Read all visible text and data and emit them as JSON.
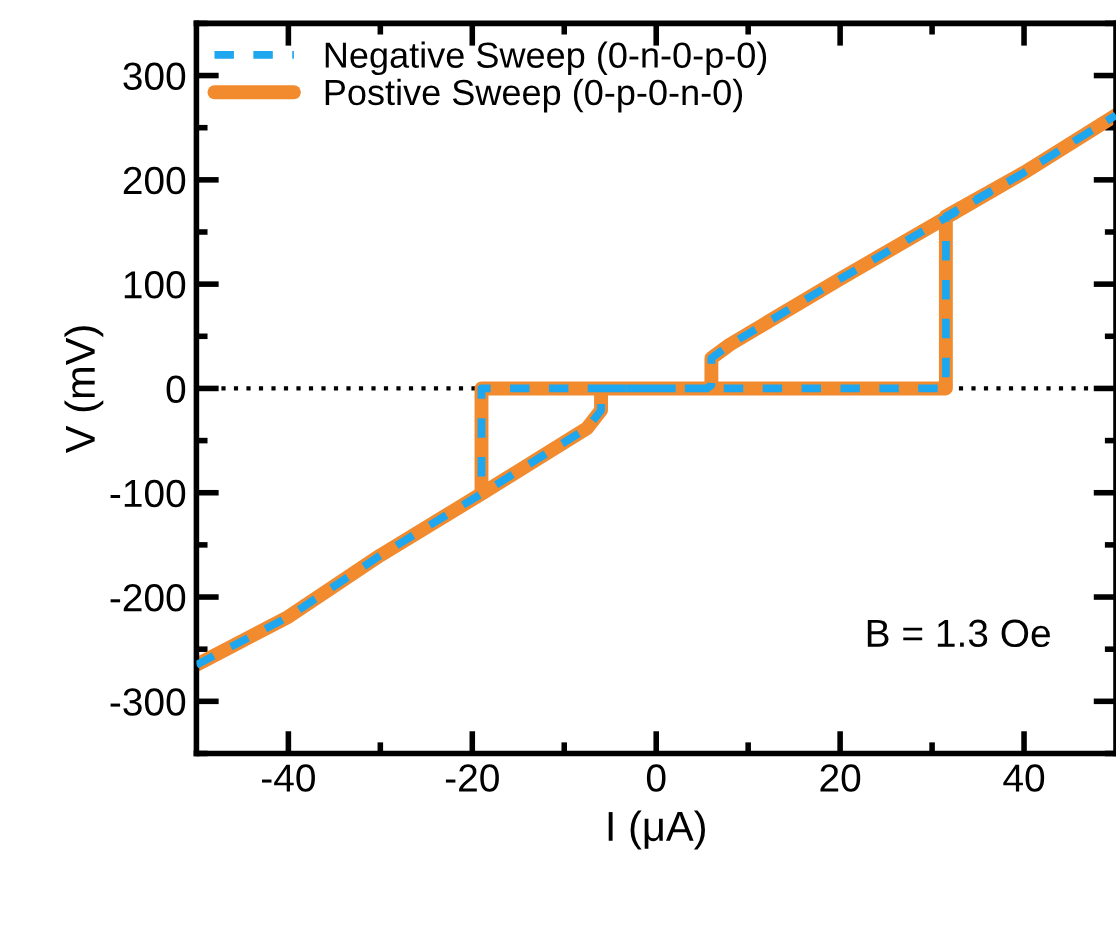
{
  "chart_data": {
    "type": "line",
    "xlabel": "I (μA)",
    "ylabel": "V (mV)",
    "xlim": [
      -50,
      50
    ],
    "ylim": [
      -350,
      350
    ],
    "xticks": [
      -40,
      {
        "value": -30,
        "label": null
      },
      -20,
      {
        "value": -10,
        "label": null
      },
      0,
      {
        "value": 10,
        "label": null
      },
      20,
      {
        "value": 30,
        "label": null
      },
      40
    ],
    "yticks": [
      {
        "value": -350,
        "label": null
      },
      -300,
      {
        "value": -250,
        "label": null
      },
      -200,
      {
        "value": -150,
        "label": null
      },
      -100,
      {
        "value": -50,
        "label": null
      },
      0,
      {
        "value": 50,
        "label": null
      },
      100,
      {
        "value": 150,
        "label": null
      },
      200,
      {
        "value": 250,
        "label": null
      },
      300,
      {
        "value": 350,
        "label": null
      }
    ],
    "grid": false,
    "legend": "top left",
    "marker": "none",
    "ref_lines": [
      {
        "axis": "y",
        "value": 0,
        "label": null,
        "color": "#000000",
        "line_style": "dotted"
      }
    ],
    "annotations": [
      "B = 1.3 Oe"
    ],
    "series": [
      {
        "name": "Postive Sweep (0-p-0-n-0)",
        "color": "#f28a2e",
        "line_style": "solid",
        "x": [
          0,
          31.5,
          31.5,
          40,
          50,
          null,
          -50,
          -40,
          -30,
          -19,
          -19,
          -5.5,
          0,
          5.5,
          6,
          6,
          8,
          20,
          40,
          50,
          null,
          -50,
          -40,
          -30,
          -19,
          -7.5,
          -6,
          -6,
          -5.5,
          0
        ],
        "values": [
          0,
          0,
          165,
          207,
          262,
          null,
          -265,
          -219,
          -160,
          -101,
          0,
          0,
          0,
          0,
          3,
          29,
          42,
          105,
          207,
          262,
          null,
          -265,
          -219,
          -160,
          -101,
          -38,
          -21,
          -3,
          0,
          0
        ]
      },
      {
        "name": "Negative Sweep (0-n-0-p-0)",
        "color": "#1ea7ef",
        "line_style": "dashed",
        "x": [
          -50,
          -40,
          -30,
          -19,
          -19,
          -5.5,
          0,
          null,
          -50,
          -40,
          -30,
          -19,
          -7.5,
          -6,
          -6,
          -5.5,
          0,
          31.5,
          31.5,
          40,
          50,
          null,
          0,
          5.5,
          6,
          6,
          8,
          20,
          40,
          50
        ],
        "values": [
          -265,
          -219,
          -160,
          -101,
          0,
          0,
          0,
          null,
          -265,
          -219,
          -160,
          -101,
          -38,
          -21,
          -3,
          0,
          0,
          0,
          165,
          207,
          262,
          null,
          0,
          0,
          3,
          29,
          42,
          105,
          207,
          262
        ]
      }
    ]
  }
}
